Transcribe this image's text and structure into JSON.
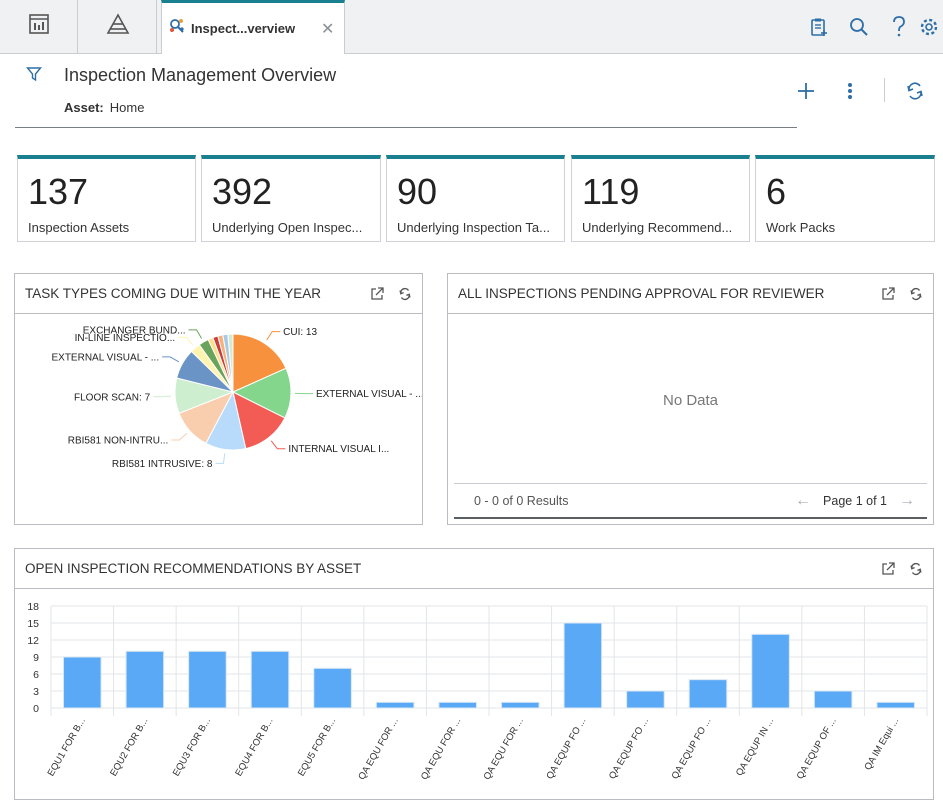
{
  "tabs": {
    "active_label": "Inspect...verview",
    "close_glyph": "✕"
  },
  "header": {
    "title": "Inspection Management Overview",
    "asset_key": "Asset:",
    "asset_value": "Home"
  },
  "kpis": [
    {
      "value": "137",
      "label": "Inspection Assets"
    },
    {
      "value": "392",
      "label": "Underlying Open Inspec..."
    },
    {
      "value": "90",
      "label": "Underlying Inspection Ta..."
    },
    {
      "value": "119",
      "label": "Underlying Recommend..."
    },
    {
      "value": "6",
      "label": "Work Packs"
    }
  ],
  "panels": {
    "task_types": {
      "title": "TASK TYPES COMING DUE WITHIN THE YEAR"
    },
    "pending": {
      "title": "ALL INSPECTIONS PENDING APPROVAL FOR REVIEWER",
      "no_data": "No Data",
      "results": "0 - 0 of 0 Results",
      "page": "Page 1 of 1"
    },
    "recs": {
      "title": "OPEN INSPECTION RECOMMENDATIONS BY ASSET"
    }
  },
  "chart_data": [
    {
      "type": "pie",
      "title": "TASK TYPES COMING DUE WITHIN THE YEAR",
      "slices": [
        {
          "label": "CUI: 13",
          "value": 13,
          "color": "#f7913d"
        },
        {
          "label": "EXTERNAL VISUAL - ...",
          "value": 10,
          "color": "#85d68d"
        },
        {
          "label": "INTERNAL VISUAL I...",
          "value": 10,
          "color": "#f25c54"
        },
        {
          "label": "RBI581 INTRUSIVE: 8",
          "value": 8,
          "color": "#b9dbfb"
        },
        {
          "label": "RBI581 NON-INTRU...",
          "value": 8,
          "color": "#f9ceae"
        },
        {
          "label": "FLOOR SCAN: 7",
          "value": 7,
          "color": "#cdeecf"
        },
        {
          "label": "EXTERNAL VISUAL - ...",
          "value": 6,
          "color": "#6a93c6"
        },
        {
          "label": "IN-LINE INSPECTIO...",
          "value": 2,
          "color": "#fff3b0"
        },
        {
          "label": "EXCHANGER BUND...",
          "value": 2,
          "color": "#6aa35c"
        },
        {
          "label": "",
          "value": 1,
          "color": "#fbe08a"
        },
        {
          "label": "",
          "value": 1,
          "color": "#cc3c3c"
        },
        {
          "label": "",
          "value": 1,
          "color": "#f7b17a"
        },
        {
          "label": "",
          "value": 1,
          "color": "#a8c8e6"
        },
        {
          "label": "",
          "value": 1,
          "color": "#d6ead0"
        }
      ]
    },
    {
      "type": "bar",
      "title": "OPEN INSPECTION RECOMMENDATIONS BY ASSET",
      "categories": [
        "EQU1 FOR B...",
        "EQU2 FOR B...",
        "EQU3 FOR B...",
        "EQU4 FOR B...",
        "EQU5 FOR B...",
        "QA EQU FOR ...",
        "QA EQU FOR ...",
        "QA EQU FOR ...",
        "QA EQUP FO ...",
        "QA EQUP FO ...",
        "QA EQUP FO ...",
        "QA EQUP IN ...",
        "QA EQUP OF ...",
        "QA IM Equi ..."
      ],
      "values": [
        9,
        10,
        10,
        10,
        7,
        1,
        1,
        1,
        15,
        3,
        5,
        13,
        3,
        1
      ],
      "yticks": [
        "18",
        "15",
        "12",
        "9",
        "6",
        "3",
        "0"
      ],
      "ylim": [
        0,
        18
      ],
      "bar_color": "#5aa9f7",
      "grid": true
    }
  ]
}
